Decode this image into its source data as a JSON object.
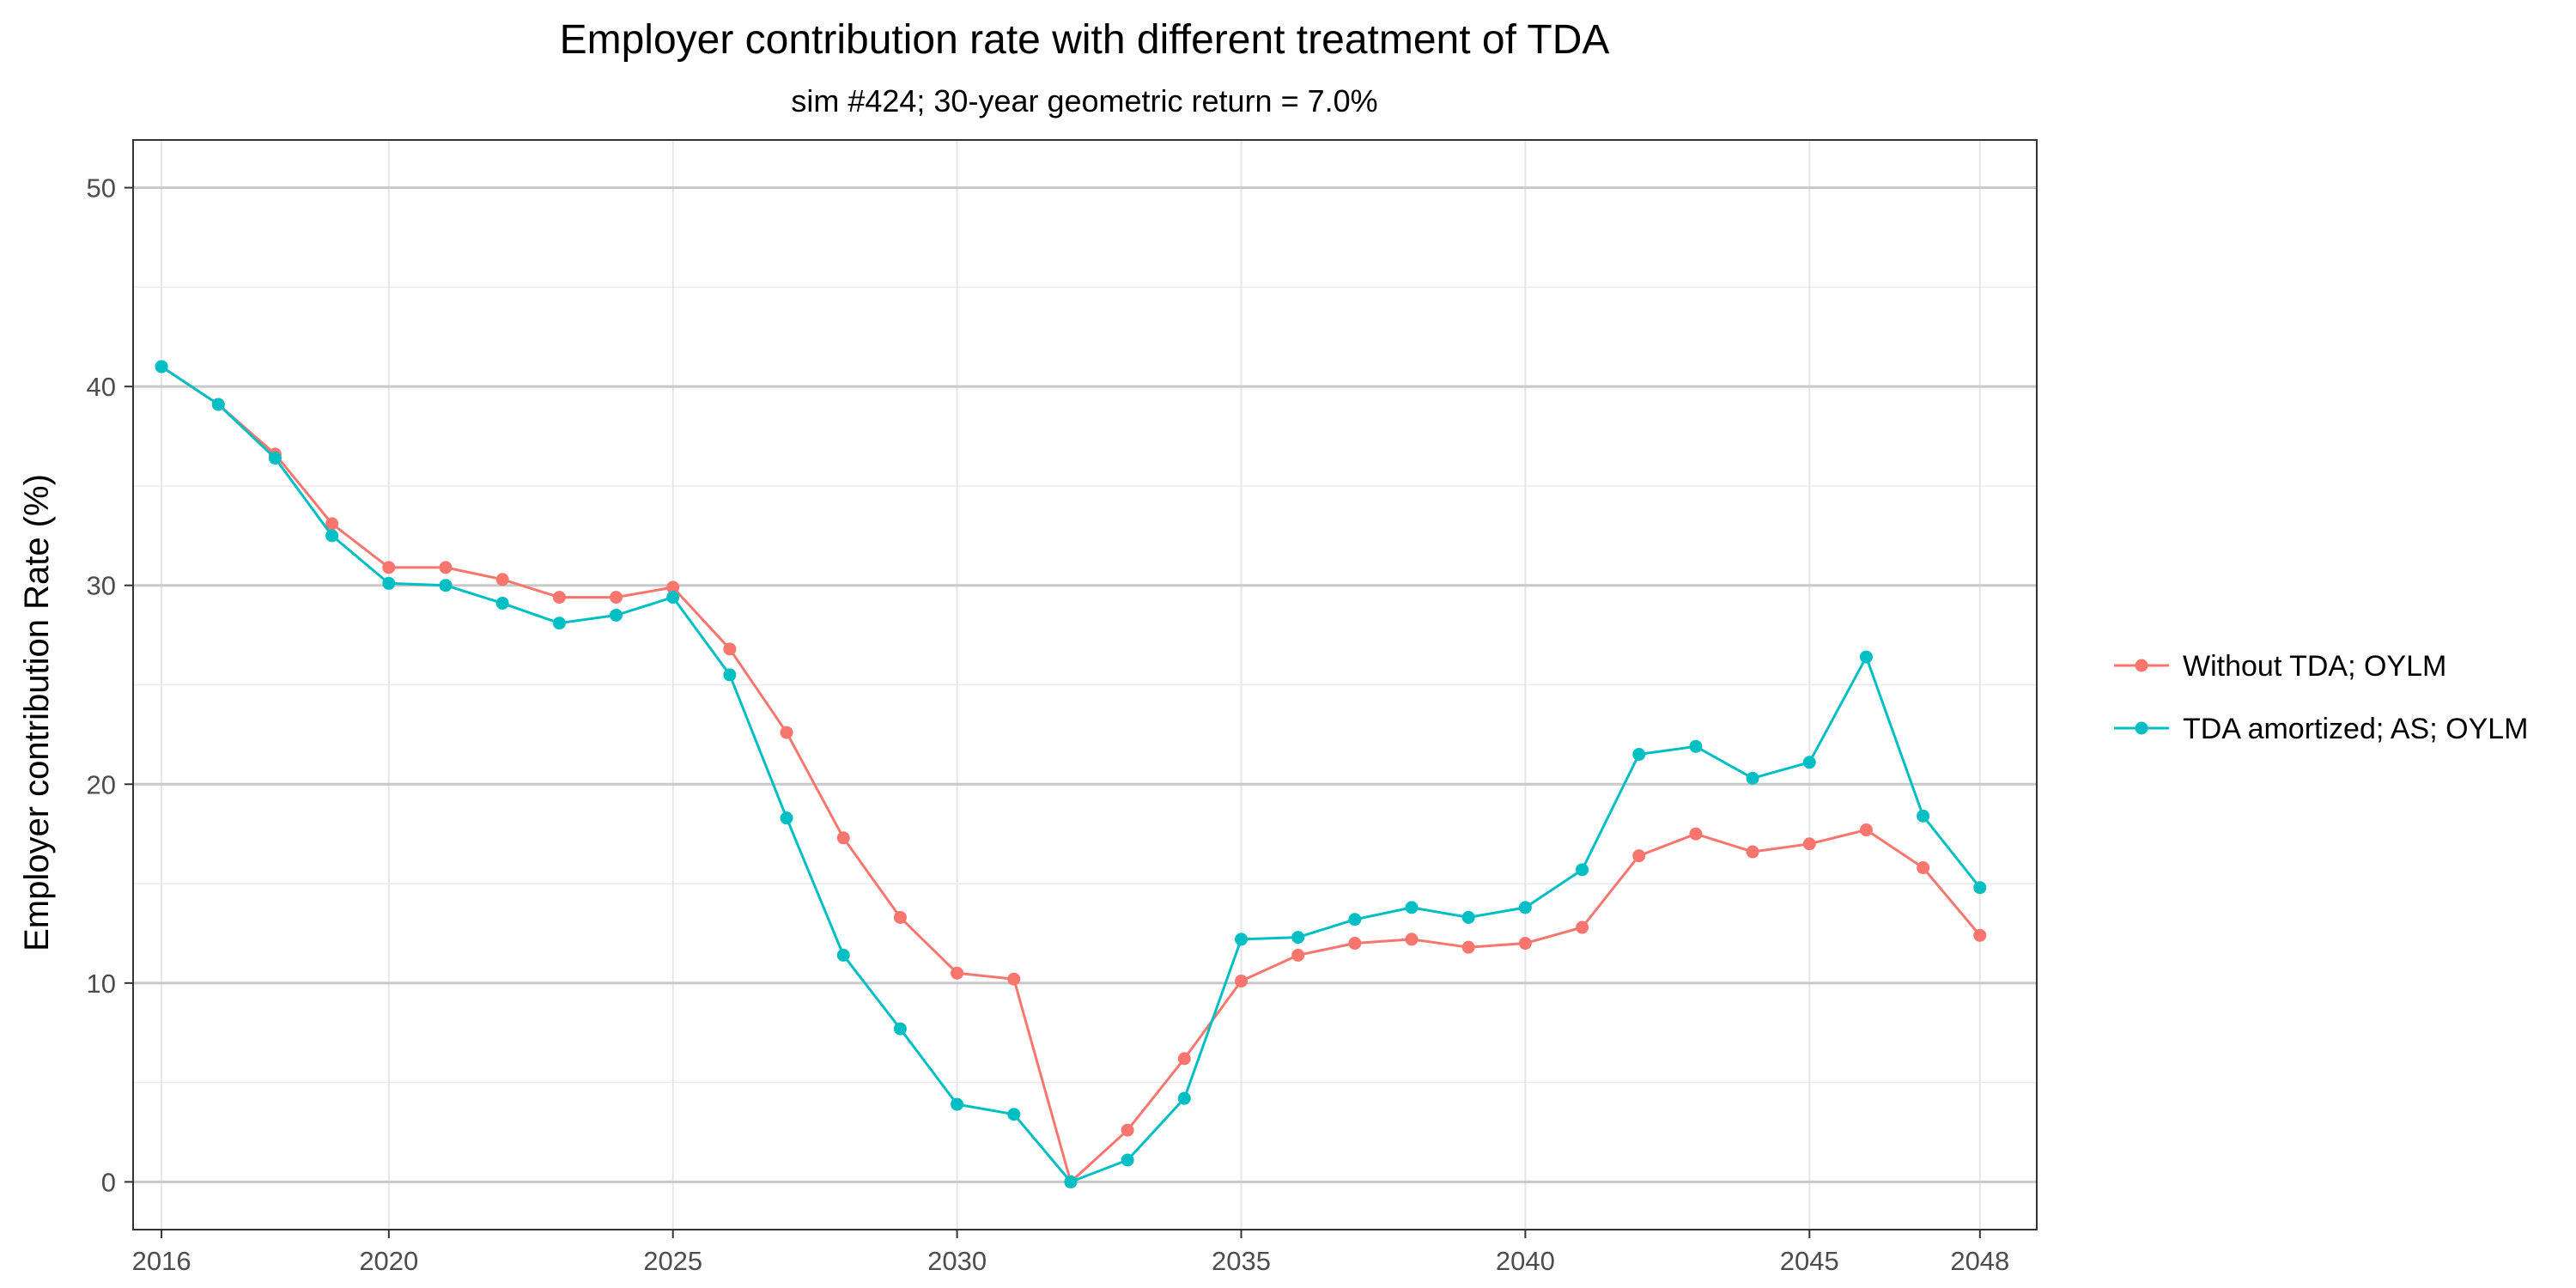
{
  "chart_data": {
    "type": "line",
    "title": "Employer contribution rate with different treatment of TDA",
    "subtitle": "sim #424; 30-year geometric return = 7.0%",
    "xlabel": "",
    "ylabel": "Employer contribution Rate (%)",
    "xlim": [
      2015.5,
      2049.0
    ],
    "ylim": [
      -2.4,
      52.4
    ],
    "x_ticks": [
      2016,
      2020,
      2025,
      2030,
      2035,
      2040,
      2045,
      2048
    ],
    "y_ticks": [
      0,
      10,
      20,
      30,
      40,
      50
    ],
    "grid": true,
    "legend_position": "right",
    "x": [
      2016,
      2017,
      2018,
      2019,
      2020,
      2021,
      2022,
      2023,
      2024,
      2025,
      2026,
      2027,
      2028,
      2029,
      2030,
      2031,
      2032,
      2033,
      2034,
      2035,
      2036,
      2037,
      2038,
      2039,
      2040,
      2041,
      2042,
      2043,
      2044,
      2045,
      2046,
      2047,
      2048
    ],
    "series": [
      {
        "name": "Without TDA; OYLM",
        "color": "#f8766d",
        "values": [
          41.0,
          39.1,
          36.6,
          33.1,
          30.9,
          30.9,
          30.3,
          29.4,
          29.4,
          29.9,
          26.8,
          22.6,
          17.3,
          13.3,
          10.5,
          10.2,
          0.0,
          2.6,
          6.2,
          10.1,
          11.4,
          12.0,
          12.2,
          11.8,
          12.0,
          12.8,
          16.4,
          17.5,
          16.6,
          17.0,
          17.7,
          15.8,
          12.4
        ]
      },
      {
        "name": "TDA amortized; AS; OYLM",
        "color": "#00bfc4",
        "values": [
          41.0,
          39.1,
          36.4,
          32.5,
          30.1,
          30.0,
          29.1,
          28.1,
          28.5,
          29.4,
          25.5,
          18.3,
          11.4,
          7.7,
          3.9,
          3.4,
          0.0,
          1.1,
          4.2,
          12.2,
          12.3,
          13.2,
          13.8,
          13.3,
          13.8,
          15.7,
          21.5,
          21.9,
          20.3,
          21.1,
          26.4,
          18.4,
          14.8
        ]
      }
    ]
  }
}
